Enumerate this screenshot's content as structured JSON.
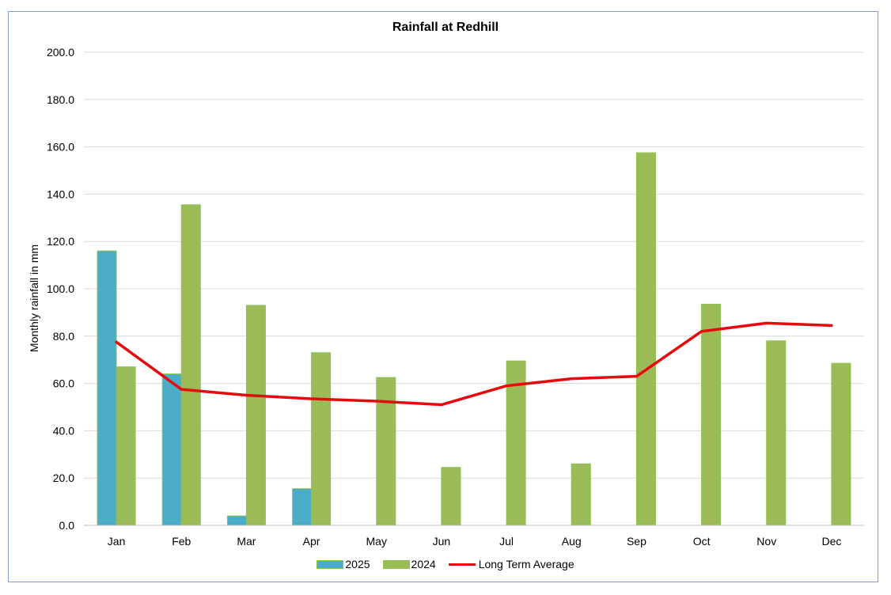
{
  "chart_data": {
    "type": "bar",
    "title": "Rainfall at Redhill",
    "xlabel": "",
    "ylabel": "Monthly rainfall in mm",
    "ylim": [
      0,
      200
    ],
    "yticks": [
      "0.0",
      "20.0",
      "40.0",
      "60.0",
      "80.0",
      "100.0",
      "120.0",
      "140.0",
      "160.0",
      "180.0",
      "200.0"
    ],
    "grid": true,
    "legend_position": "bottom",
    "categories": [
      "Jan",
      "Feb",
      "Mar",
      "Apr",
      "May",
      "Jun",
      "Jul",
      "Aug",
      "Sep",
      "Oct",
      "Nov",
      "Dec"
    ],
    "series": [
      {
        "name": "2025",
        "kind": "bar",
        "color": "#4bacc6",
        "border": "#8bc34a",
        "values": [
          116,
          64,
          4,
          15.5,
          null,
          null,
          null,
          null,
          null,
          null,
          null,
          null
        ]
      },
      {
        "name": "2024",
        "kind": "bar",
        "color": "#9bbb59",
        "border": "#8bc34a",
        "values": [
          67,
          135.5,
          93,
          73,
          62.5,
          24.5,
          69.5,
          26,
          157.5,
          93.5,
          78,
          68.5
        ]
      },
      {
        "name": "Long Term Average",
        "kind": "line",
        "color": "#e8090e",
        "values": [
          77.5,
          57.5,
          55,
          53.5,
          52.5,
          51,
          59,
          62,
          63,
          82,
          85.5,
          84.5
        ]
      }
    ]
  }
}
